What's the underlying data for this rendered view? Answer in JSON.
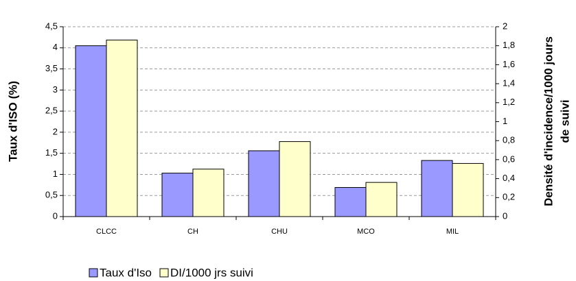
{
  "chart_data": {
    "type": "bar",
    "ylabel": "Taux d'ISO (%)",
    "y2label": [
      "Densité d'incidence/1000 jours",
      "de suivi"
    ],
    "categories": [
      "CLCC",
      "CH",
      "CHU",
      "MCO",
      "MIL"
    ],
    "series": [
      {
        "name": "Taux d'Iso",
        "color": "#9999ff",
        "values": [
          4.05,
          1.03,
          1.56,
          0.69,
          1.33
        ]
      },
      {
        "name": "DI/1000 jrs suivi",
        "color": "#ffffcc",
        "axis": "y2",
        "values": [
          1.86,
          0.5,
          0.79,
          0.36,
          0.56
        ]
      }
    ],
    "ylim": [
      0,
      4.5
    ],
    "yticks": [
      0,
      {
        "value": 0.5,
        "label": "0,5"
      },
      1,
      {
        "value": 1.5,
        "label": "1,5"
      },
      2,
      {
        "value": 2.5,
        "label": "2,5"
      },
      3,
      {
        "value": 3.5,
        "label": "3,5"
      },
      4,
      {
        "value": 4.5,
        "label": "4,5"
      }
    ],
    "y2lim": [
      0,
      2
    ],
    "y2ticks": [
      0,
      {
        "value": 0.2,
        "label": "0,2"
      },
      {
        "value": 0.4,
        "label": "0,4"
      },
      {
        "value": 0.6,
        "label": "0,6"
      },
      {
        "value": 0.8,
        "label": "0,8"
      },
      1,
      {
        "value": 1.2,
        "label": "1,2"
      },
      {
        "value": 1.4,
        "label": "1,4"
      },
      {
        "value": 1.6,
        "label": "1,6"
      },
      {
        "value": 1.8,
        "label": "1,8"
      },
      2
    ],
    "grid": true,
    "legend": "bottom"
  }
}
